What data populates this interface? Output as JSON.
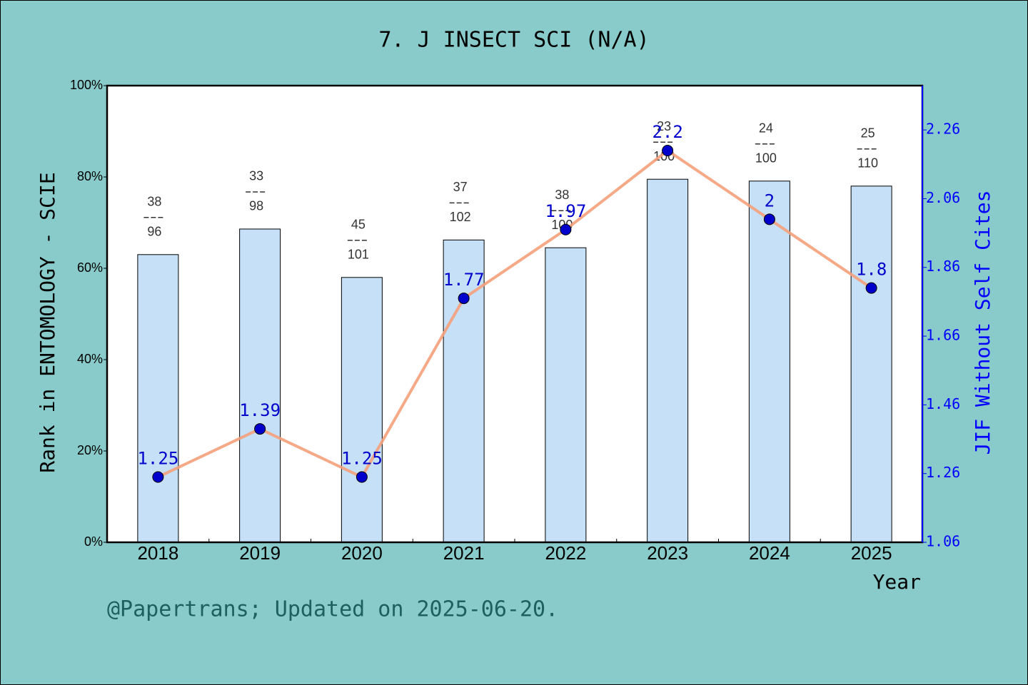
{
  "chart_data": {
    "type": "bar",
    "title": "7. J INSECT SCI (N/A)",
    "xlabel": "Year",
    "ylabel": "Rank in ENTOMOLOGY - SCIE",
    "y2label": "JIF Without Self Cites",
    "categories": [
      "2018",
      "2019",
      "2020",
      "2021",
      "2022",
      "2023",
      "2024",
      "2025"
    ],
    "series": [
      {
        "type": "bar",
        "color": "#c5e0f7",
        "values": [
          63.0,
          68.6,
          58.0,
          66.2,
          64.5,
          79.5,
          79.1,
          78.0
        ],
        "ranks": [
          38,
          33,
          45,
          37,
          38,
          23,
          24,
          25
        ],
        "totals": [
          96,
          98,
          101,
          102,
          100,
          100,
          100,
          110
        ]
      },
      {
        "type": "line",
        "axis": "y2",
        "color": "#f4a07a",
        "marker_color": "#0000cc",
        "values": [
          1.25,
          1.39,
          1.25,
          1.77,
          1.97,
          2.2,
          2,
          1.8
        ]
      }
    ],
    "ylim": [
      0,
      100
    ],
    "yticks": [
      {
        "value": 0,
        "label": "0%"
      },
      {
        "value": 20,
        "label": "20%"
      },
      {
        "value": 40,
        "label": "40%"
      },
      {
        "value": 60,
        "label": "60%"
      },
      {
        "value": 80,
        "label": "80%"
      },
      {
        "value": 100,
        "label": "100%"
      }
    ],
    "y2lim": [
      1.06,
      2.389
    ],
    "y2ticks": [
      1.06,
      1.26,
      1.46,
      1.66,
      1.86,
      2.06,
      2.26
    ]
  },
  "footer": "@Papertrans; Updated on 2025-06-20."
}
